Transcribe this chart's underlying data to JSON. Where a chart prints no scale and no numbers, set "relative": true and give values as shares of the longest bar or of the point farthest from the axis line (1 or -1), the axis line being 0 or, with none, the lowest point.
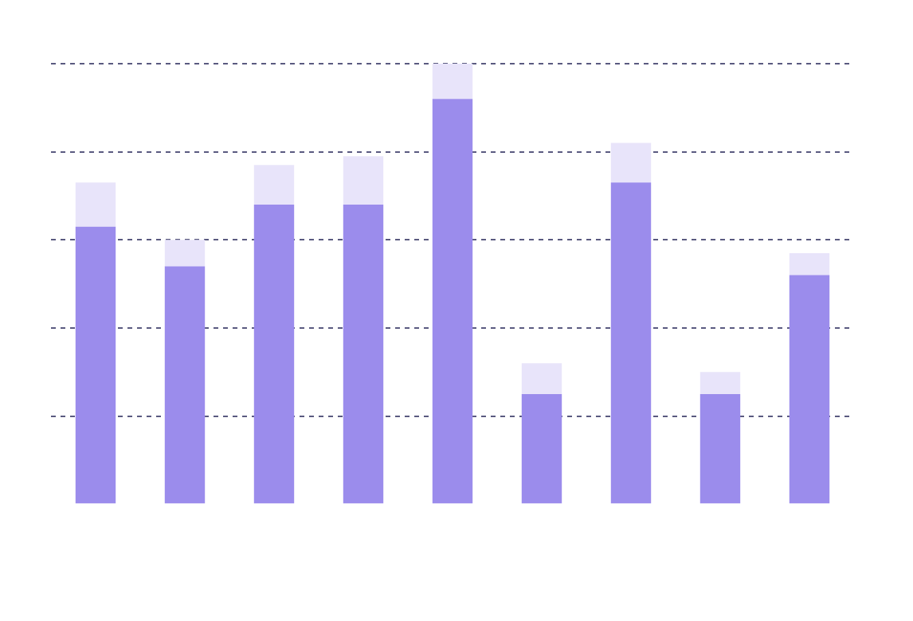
{
  "chart_data": {
    "type": "bar",
    "relative": true,
    "stacked": true,
    "grid": "y",
    "categories": [
      null,
      null,
      null,
      null,
      null,
      null,
      null,
      null,
      null
    ],
    "series": [
      {
        "color": "#9b8cec",
        "values": [
          0.63,
          0.54,
          0.68,
          0.68,
          0.92,
          0.25,
          0.73,
          0.25,
          0.52
        ]
      },
      {
        "color": "#e8e4fa",
        "values": [
          0.1,
          0.06,
          0.09,
          0.11,
          0.08,
          0.07,
          0.09,
          0.05,
          0.05
        ]
      }
    ]
  }
}
